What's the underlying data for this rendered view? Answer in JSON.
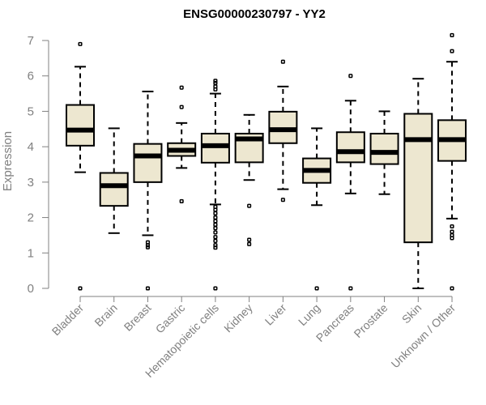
{
  "chart_data": {
    "type": "boxplot",
    "title": "ENSG00000230797 - YY2",
    "xlabel": "",
    "ylabel": "Expression",
    "ylim": [
      0,
      7
    ],
    "yticks": [
      0,
      1,
      2,
      3,
      4,
      5,
      6,
      7
    ],
    "box_fill": "#ede7d0",
    "axis_color": "#808080",
    "categories": [
      "Bladder",
      "Brain",
      "Breast",
      "Gastric",
      "Hematopoietic cells",
      "Kidney",
      "Liver",
      "Lung",
      "Pancreas",
      "Prostate",
      "Skin",
      "Unknown / Other"
    ],
    "boxes": [
      {
        "name": "Bladder",
        "whisker_low": 3.28,
        "q1": 4.03,
        "median": 4.47,
        "q3": 5.18,
        "whisker_high": 6.26,
        "outliers": [
          6.9,
          0.0
        ]
      },
      {
        "name": "Brain",
        "whisker_low": 1.56,
        "q1": 2.33,
        "median": 2.9,
        "q3": 3.26,
        "whisker_high": 4.52,
        "outliers": []
      },
      {
        "name": "Breast",
        "whisker_low": 1.5,
        "q1": 3.0,
        "median": 3.74,
        "q3": 4.08,
        "whisker_high": 5.56,
        "outliers": [
          1.3,
          1.22,
          1.16,
          0.0
        ]
      },
      {
        "name": "Gastric",
        "whisker_low": 3.4,
        "q1": 3.74,
        "median": 3.9,
        "q3": 4.1,
        "whisker_high": 4.67,
        "outliers": [
          5.67,
          5.12,
          2.46
        ]
      },
      {
        "name": "Hematopoietic cells",
        "whisker_low": 2.37,
        "q1": 3.55,
        "median": 4.03,
        "q3": 4.37,
        "whisker_high": 5.5,
        "outliers": [
          5.86,
          5.8,
          5.7,
          5.62,
          2.3,
          2.22,
          2.12,
          2.0,
          1.9,
          1.8,
          1.7,
          1.58,
          1.45,
          1.34,
          1.22,
          1.15,
          0.0
        ]
      },
      {
        "name": "Kidney",
        "whisker_low": 3.06,
        "q1": 3.56,
        "median": 4.22,
        "q3": 4.37,
        "whisker_high": 4.9,
        "outliers": [
          2.33,
          1.37,
          1.25
        ]
      },
      {
        "name": "Liver",
        "whisker_low": 2.8,
        "q1": 4.1,
        "median": 4.48,
        "q3": 4.99,
        "whisker_high": 5.7,
        "outliers": [
          6.4,
          2.5
        ]
      },
      {
        "name": "Lung",
        "whisker_low": 2.35,
        "q1": 2.98,
        "median": 3.33,
        "q3": 3.67,
        "whisker_high": 4.52,
        "outliers": [
          0.0
        ]
      },
      {
        "name": "Pancreas",
        "whisker_low": 2.68,
        "q1": 3.56,
        "median": 3.86,
        "q3": 4.41,
        "whisker_high": 5.3,
        "outliers": [
          6.0,
          0.0
        ]
      },
      {
        "name": "Prostate",
        "whisker_low": 2.66,
        "q1": 3.51,
        "median": 3.84,
        "q3": 4.37,
        "whisker_high": 5.0,
        "outliers": []
      },
      {
        "name": "Skin",
        "whisker_low": 0.0,
        "q1": 1.3,
        "median": 4.2,
        "q3": 4.93,
        "whisker_high": 5.92,
        "outliers": []
      },
      {
        "name": "Unknown / Other",
        "whisker_low": 1.97,
        "q1": 3.6,
        "median": 4.2,
        "q3": 4.75,
        "whisker_high": 6.4,
        "outliers": [
          7.15,
          6.7,
          1.75,
          1.6,
          1.5,
          1.42,
          0.0
        ]
      }
    ]
  }
}
